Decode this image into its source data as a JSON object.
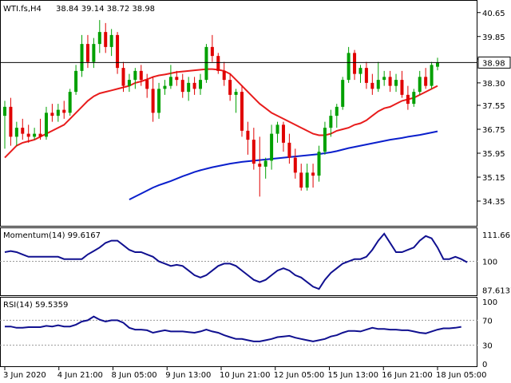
{
  "chart_data": [
    {
      "type": "candlestick",
      "title": "WTI.fs,H4",
      "ohlc_header": "38.84 39.14 38.72 38.98",
      "current_price": "38.98",
      "ylim": [
        34.35,
        40.75
      ],
      "price_ticks": [
        "40.65",
        "39.85",
        "39.10",
        "38.30",
        "37.55",
        "36.75",
        "35.95",
        "35.15",
        "34.35"
      ],
      "colors": {
        "bull": "#00a000",
        "bear": "#e00000",
        "ma_fast": "#e81c1c",
        "ma_slow": "#0a1fcc"
      },
      "candles": [
        {
          "o": 37.2,
          "h": 37.7,
          "l": 36.1,
          "c": 37.5
        },
        {
          "o": 37.5,
          "h": 37.8,
          "l": 36.2,
          "c": 36.5
        },
        {
          "o": 36.5,
          "h": 37.0,
          "l": 36.2,
          "c": 36.8
        },
        {
          "o": 36.8,
          "h": 37.1,
          "l": 36.4,
          "c": 36.6
        },
        {
          "o": 36.6,
          "h": 36.9,
          "l": 36.3,
          "c": 36.5
        },
        {
          "o": 36.5,
          "h": 36.8,
          "l": 36.4,
          "c": 36.6
        },
        {
          "o": 36.6,
          "h": 37.1,
          "l": 36.4,
          "c": 36.5
        },
        {
          "o": 36.5,
          "h": 37.5,
          "l": 36.4,
          "c": 37.3
        },
        {
          "o": 37.3,
          "h": 37.6,
          "l": 37.0,
          "c": 37.2
        },
        {
          "o": 37.2,
          "h": 37.6,
          "l": 37.0,
          "c": 37.4
        },
        {
          "o": 37.4,
          "h": 37.7,
          "l": 37.1,
          "c": 37.3
        },
        {
          "o": 37.3,
          "h": 38.1,
          "l": 37.2,
          "c": 38.0
        },
        {
          "o": 38.0,
          "h": 38.9,
          "l": 37.9,
          "c": 38.7
        },
        {
          "o": 38.7,
          "h": 39.9,
          "l": 38.5,
          "c": 39.6
        },
        {
          "o": 39.6,
          "h": 39.9,
          "l": 38.8,
          "c": 39.0
        },
        {
          "o": 39.0,
          "h": 39.8,
          "l": 38.8,
          "c": 39.6
        },
        {
          "o": 39.6,
          "h": 40.4,
          "l": 39.3,
          "c": 40.0
        },
        {
          "o": 40.0,
          "h": 40.3,
          "l": 39.3,
          "c": 39.5
        },
        {
          "o": 39.5,
          "h": 40.1,
          "l": 39.2,
          "c": 39.9
        },
        {
          "o": 39.9,
          "h": 40.0,
          "l": 38.6,
          "c": 38.8
        },
        {
          "o": 38.8,
          "h": 39.0,
          "l": 38.0,
          "c": 38.2
        },
        {
          "o": 38.2,
          "h": 38.6,
          "l": 38.0,
          "c": 38.4
        },
        {
          "o": 38.4,
          "h": 38.8,
          "l": 38.1,
          "c": 38.7
        },
        {
          "o": 38.7,
          "h": 38.9,
          "l": 38.2,
          "c": 38.4
        },
        {
          "o": 38.4,
          "h": 38.6,
          "l": 37.8,
          "c": 38.1
        },
        {
          "o": 38.1,
          "h": 38.5,
          "l": 37.0,
          "c": 37.3
        },
        {
          "o": 37.3,
          "h": 38.3,
          "l": 37.1,
          "c": 38.1
        },
        {
          "o": 38.1,
          "h": 38.4,
          "l": 37.9,
          "c": 38.2
        },
        {
          "o": 38.2,
          "h": 38.9,
          "l": 38.1,
          "c": 38.5
        },
        {
          "o": 38.5,
          "h": 38.7,
          "l": 38.2,
          "c": 38.4
        },
        {
          "o": 38.4,
          "h": 38.6,
          "l": 37.8,
          "c": 38.0
        },
        {
          "o": 38.0,
          "h": 38.5,
          "l": 37.7,
          "c": 38.3
        },
        {
          "o": 38.3,
          "h": 38.5,
          "l": 37.9,
          "c": 38.1
        },
        {
          "o": 38.1,
          "h": 38.6,
          "l": 37.9,
          "c": 38.4
        },
        {
          "o": 38.4,
          "h": 39.6,
          "l": 38.3,
          "c": 39.5
        },
        {
          "o": 39.5,
          "h": 39.9,
          "l": 39.0,
          "c": 39.2
        },
        {
          "o": 39.2,
          "h": 39.3,
          "l": 38.6,
          "c": 38.7
        },
        {
          "o": 38.7,
          "h": 39.0,
          "l": 38.2,
          "c": 38.4
        },
        {
          "o": 38.4,
          "h": 38.6,
          "l": 37.7,
          "c": 37.9
        },
        {
          "o": 37.9,
          "h": 38.1,
          "l": 37.3,
          "c": 38.0
        },
        {
          "o": 38.0,
          "h": 38.2,
          "l": 36.5,
          "c": 36.7
        },
        {
          "o": 36.7,
          "h": 37.0,
          "l": 35.9,
          "c": 36.4
        },
        {
          "o": 36.4,
          "h": 36.8,
          "l": 35.4,
          "c": 35.6
        },
        {
          "o": 35.6,
          "h": 36.5,
          "l": 34.5,
          "c": 35.5
        },
        {
          "o": 35.5,
          "h": 35.8,
          "l": 35.1,
          "c": 35.7
        },
        {
          "o": 35.7,
          "h": 36.9,
          "l": 35.4,
          "c": 36.6
        },
        {
          "o": 36.6,
          "h": 37.0,
          "l": 36.3,
          "c": 36.9
        },
        {
          "o": 36.9,
          "h": 37.0,
          "l": 36.0,
          "c": 36.3
        },
        {
          "o": 36.3,
          "h": 36.6,
          "l": 35.6,
          "c": 35.8
        },
        {
          "o": 35.8,
          "h": 36.1,
          "l": 35.1,
          "c": 35.3
        },
        {
          "o": 35.3,
          "h": 35.6,
          "l": 34.7,
          "c": 34.8
        },
        {
          "o": 34.8,
          "h": 35.6,
          "l": 34.7,
          "c": 35.3
        },
        {
          "o": 35.3,
          "h": 35.6,
          "l": 34.8,
          "c": 35.2
        },
        {
          "o": 35.2,
          "h": 36.2,
          "l": 35.0,
          "c": 36.0
        },
        {
          "o": 36.0,
          "h": 37.0,
          "l": 35.9,
          "c": 36.8
        },
        {
          "o": 36.8,
          "h": 37.4,
          "l": 36.5,
          "c": 37.2
        },
        {
          "o": 37.2,
          "h": 37.6,
          "l": 36.8,
          "c": 37.5
        },
        {
          "o": 37.5,
          "h": 38.5,
          "l": 37.4,
          "c": 38.4
        },
        {
          "o": 38.4,
          "h": 39.5,
          "l": 38.3,
          "c": 39.3
        },
        {
          "o": 39.3,
          "h": 39.4,
          "l": 38.4,
          "c": 38.6
        },
        {
          "o": 38.6,
          "h": 38.9,
          "l": 38.3,
          "c": 38.8
        },
        {
          "o": 38.8,
          "h": 39.0,
          "l": 38.1,
          "c": 38.3
        },
        {
          "o": 38.3,
          "h": 38.6,
          "l": 37.9,
          "c": 38.1
        },
        {
          "o": 38.1,
          "h": 39.0,
          "l": 38.0,
          "c": 38.4
        },
        {
          "o": 38.4,
          "h": 38.7,
          "l": 38.2,
          "c": 38.5
        },
        {
          "o": 38.5,
          "h": 38.7,
          "l": 38.0,
          "c": 38.2
        },
        {
          "o": 38.2,
          "h": 38.6,
          "l": 38.0,
          "c": 38.4
        },
        {
          "o": 38.4,
          "h": 38.7,
          "l": 37.8,
          "c": 37.9
        },
        {
          "o": 37.9,
          "h": 38.2,
          "l": 37.4,
          "c": 37.6
        },
        {
          "o": 37.6,
          "h": 38.1,
          "l": 37.5,
          "c": 38.0
        },
        {
          "o": 38.0,
          "h": 38.7,
          "l": 37.9,
          "c": 38.5
        },
        {
          "o": 38.5,
          "h": 38.8,
          "l": 38.1,
          "c": 38.2
        },
        {
          "o": 38.2,
          "h": 39.0,
          "l": 38.1,
          "c": 38.9
        },
        {
          "o": 38.84,
          "h": 39.14,
          "l": 38.72,
          "c": 38.98
        }
      ],
      "ma_fast": [
        35.8,
        36.0,
        36.2,
        36.3,
        36.35,
        36.4,
        36.5,
        36.6,
        36.7,
        36.8,
        36.9,
        37.1,
        37.3,
        37.5,
        37.7,
        37.85,
        37.95,
        38.0,
        38.05,
        38.1,
        38.15,
        38.2,
        38.3,
        38.35,
        38.42,
        38.5,
        38.55,
        38.58,
        38.62,
        38.66,
        38.68,
        38.7,
        38.72,
        38.74,
        38.76,
        38.76,
        38.74,
        38.7,
        38.6,
        38.4,
        38.2,
        38.0,
        37.8,
        37.6,
        37.45,
        37.3,
        37.2,
        37.1,
        37.0,
        36.9,
        36.8,
        36.7,
        36.6,
        36.55,
        36.55,
        36.6,
        36.7,
        36.75,
        36.8,
        36.9,
        36.95,
        37.05,
        37.2,
        37.35,
        37.45,
        37.5,
        37.6,
        37.7,
        37.75,
        37.8,
        37.9,
        38.0,
        38.1,
        38.2
      ],
      "ma_slow": [
        null,
        null,
        null,
        null,
        null,
        null,
        null,
        null,
        null,
        null,
        null,
        null,
        null,
        null,
        null,
        null,
        null,
        null,
        null,
        null,
        null,
        34.4,
        34.5,
        34.6,
        34.7,
        34.8,
        34.88,
        34.95,
        35.02,
        35.1,
        35.18,
        35.25,
        35.32,
        35.38,
        35.43,
        35.48,
        35.52,
        35.56,
        35.6,
        35.63,
        35.66,
        35.68,
        35.7,
        35.72,
        35.74,
        35.76,
        35.78,
        35.8,
        35.82,
        35.84,
        35.86,
        35.88,
        35.9,
        35.92,
        35.95,
        35.98,
        36.02,
        36.07,
        36.12,
        36.16,
        36.2,
        36.24,
        36.28,
        36.32,
        36.36,
        36.4,
        36.43,
        36.46,
        36.5,
        36.53,
        36.56,
        36.6,
        36.64,
        36.68
      ]
    },
    {
      "type": "line",
      "title": "Momentum(14) 99.6167",
      "ylim": [
        86.0,
        113.0
      ],
      "ticks": [
        "111.661",
        "100",
        "87.6137"
      ],
      "values": [
        104,
        104.5,
        104,
        103,
        102,
        102,
        102,
        102,
        102,
        102,
        101,
        101,
        101,
        101,
        103,
        104.5,
        106,
        108,
        109,
        109,
        107,
        105,
        104,
        104,
        103,
        102,
        100,
        99,
        98,
        98.5,
        98,
        96,
        94,
        93,
        94,
        96,
        98,
        99,
        99,
        98,
        96,
        94,
        92,
        91,
        92,
        94,
        96,
        97,
        96,
        94,
        93,
        91,
        89,
        88,
        92,
        95,
        97,
        99,
        100,
        101,
        101,
        102,
        105,
        109,
        112,
        108,
        104,
        104,
        105,
        106,
        109,
        111,
        110,
        106,
        101,
        101,
        102,
        101,
        99.6
      ],
      "reference_level": 100,
      "color": "#101090"
    },
    {
      "type": "line",
      "title": "RSI(14) 59.5359",
      "ylim": [
        0,
        100
      ],
      "ticks": [
        "100",
        "70",
        "30",
        "0"
      ],
      "levels": [
        70,
        30
      ],
      "values": [
        60,
        60,
        58,
        58,
        59,
        59,
        59,
        61,
        60,
        62,
        60,
        60,
        63,
        68,
        70,
        76,
        71,
        68,
        70,
        70,
        66,
        58,
        55,
        55,
        54,
        50,
        52,
        54,
        52,
        52,
        52,
        51,
        50,
        52,
        55,
        52,
        50,
        46,
        43,
        40,
        40,
        38,
        36,
        36,
        38,
        40,
        43,
        44,
        45,
        42,
        40,
        38,
        36,
        38,
        40,
        44,
        46,
        50,
        53,
        53,
        52,
        55,
        58,
        56,
        56,
        55,
        55,
        54,
        54,
        52,
        50,
        49,
        52,
        55,
        57,
        57,
        58,
        59.5
      ],
      "color": "#101090"
    }
  ],
  "time_axis": {
    "labels": [
      "3 Jun 2020",
      "4 Jun 21:00",
      "8 Jun 05:00",
      "9 Jun 13:00",
      "10 Jun 21:00",
      "12 Jun 05:00",
      "15 Jun 13:00",
      "16 Jun 21:00",
      "18 Jun 05:00"
    ]
  }
}
